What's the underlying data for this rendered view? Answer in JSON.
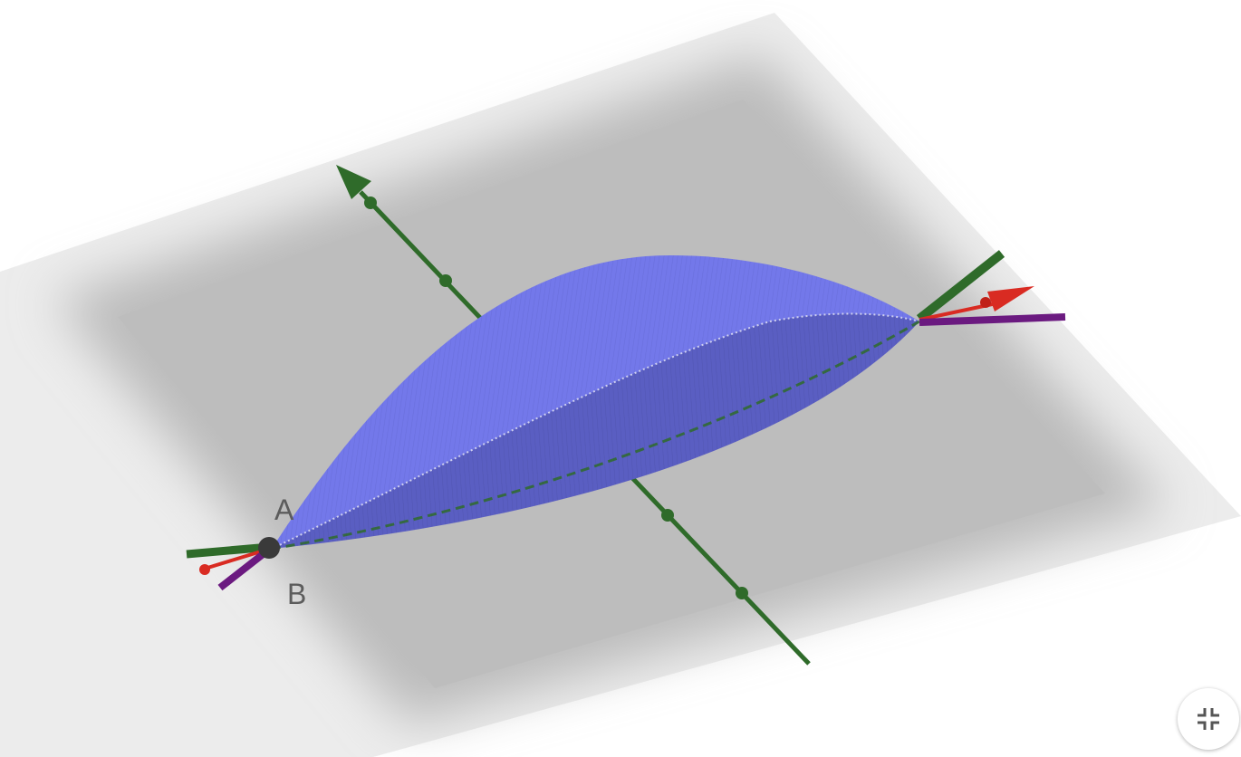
{
  "points": {
    "a": {
      "label": "A"
    },
    "b": {
      "label": "B"
    }
  },
  "colors": {
    "plane": "#bdbdbd",
    "surface_light": "#7378ea",
    "surface_dark": "#5a5ec2",
    "axis_green": "#2f6b2a",
    "axis_red": "#d92b22",
    "axis_purple": "#6b1a80",
    "point": "#3a3a3a"
  },
  "toolbar": {
    "exit_fullscreen_icon": "exit-fullscreen-icon"
  }
}
